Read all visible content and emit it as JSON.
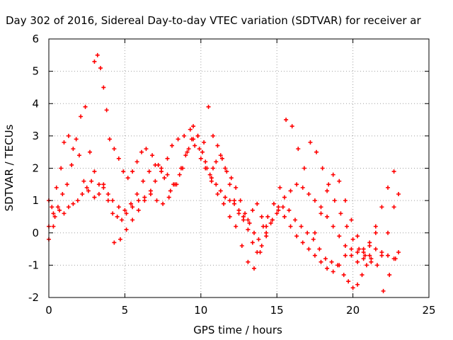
{
  "chart_data": {
    "type": "scatter",
    "title": "Day 302 of 2016, Sidereal Day-to-day VTEC variation (SDTVAR) for receiver ar",
    "xlabel": "GPS time / hours",
    "ylabel": "SDTVAR / TECUs",
    "xlim": [
      0,
      25
    ],
    "ylim": [
      -2,
      6
    ],
    "xticks": [
      "0",
      "5",
      "10",
      "15",
      "20",
      "25"
    ],
    "yticks": [
      "-2",
      "-1",
      "0",
      "1",
      "2",
      "3",
      "4",
      "5",
      "6"
    ],
    "grid": true,
    "marker": "plus",
    "color": "#ff0000",
    "series": [
      {
        "x": [
          0.0,
          0.3,
          0.5,
          0.8,
          1.0,
          1.3,
          1.6,
          2.0,
          2.3,
          2.6,
          3.0,
          3.3,
          3.6,
          3.9,
          4.2,
          4.5,
          4.8,
          5.1,
          5.5,
          5.9,
          6.3,
          6.7,
          7.0,
          7.4,
          7.8,
          8.1,
          8.5,
          8.9,
          9.3,
          9.6,
          10.0,
          10.3,
          10.6,
          10.8,
          11.0,
          11.3,
          11.6,
          11.9,
          12.2,
          12.5,
          12.8,
          13.1,
          13.4,
          13.7,
          14.0,
          14.3,
          14.6,
          15.0,
          15.4,
          15.8,
          16.2,
          16.6,
          17.0,
          17.4,
          17.8,
          18.2,
          18.6,
          19.0,
          19.4,
          19.7,
          20.0,
          20.3,
          20.6,
          20.9,
          21.2
        ],
        "y": [
          0.2,
          0.6,
          1.4,
          2.0,
          2.8,
          3.0,
          2.6,
          2.4,
          1.6,
          1.3,
          1.1,
          1.2,
          1.5,
          1.0,
          0.6,
          0.5,
          0.4,
          0.6,
          0.8,
          1.0,
          1.1,
          1.3,
          1.6,
          1.9,
          2.3,
          2.7,
          2.9,
          3.0,
          3.2,
          2.7,
          2.3,
          2.0,
          1.8,
          2.0,
          2.2,
          2.4,
          2.0,
          1.5,
          1.0,
          0.7,
          0.5,
          0.4,
          0.7,
          0.9,
          0.5,
          0.2,
          0.3,
          0.6,
          0.8,
          0.7,
          0.4,
          0.2,
          0.0,
          -0.2,
          -0.5,
          -0.8,
          -0.9,
          -1.0,
          -1.3,
          -1.5,
          -1.7,
          -1.6,
          -1.3,
          -1.0,
          -0.8
        ]
      },
      {
        "x": [
          0.0,
          0.2,
          0.4,
          0.7,
          1.0,
          1.3,
          1.6,
          1.9,
          2.2,
          2.5,
          2.8,
          3.0,
          3.2,
          3.4,
          3.6,
          3.8,
          4.0,
          4.3,
          4.6,
          4.9,
          5.2,
          5.5,
          5.8,
          6.1,
          6.4,
          6.8,
          7.2,
          7.6,
          8.0,
          8.4,
          8.8,
          9.2,
          9.5,
          9.8,
          10.1,
          10.4,
          10.7,
          11.0,
          11.3,
          11.6,
          11.9,
          12.2,
          12.5,
          12.8,
          13.1,
          13.4,
          13.7,
          14.0,
          14.3,
          14.7,
          15.1,
          15.5,
          15.9,
          16.3,
          16.7,
          17.1,
          17.5,
          17.9,
          18.3,
          18.7,
          19.1,
          19.5,
          19.9,
          20.3,
          20.7,
          21.1,
          21.5,
          21.9,
          22.3,
          22.7
        ],
        "y": [
          1.0,
          0.8,
          0.5,
          0.7,
          0.6,
          0.8,
          0.9,
          1.0,
          1.2,
          1.4,
          1.6,
          5.3,
          5.5,
          5.1,
          4.5,
          3.8,
          2.9,
          2.6,
          2.3,
          1.9,
          1.7,
          1.9,
          2.2,
          2.5,
          2.6,
          2.4,
          2.1,
          1.7,
          1.3,
          1.5,
          2.0,
          2.6,
          3.3,
          3.0,
          2.5,
          2.0,
          1.7,
          1.5,
          1.3,
          1.1,
          1.0,
          0.9,
          0.6,
          0.4,
          0.1,
          -0.3,
          -0.6,
          -0.4,
          0.0,
          0.4,
          0.8,
          1.1,
          1.3,
          1.5,
          1.4,
          1.2,
          1.0,
          0.8,
          0.5,
          0.2,
          -0.1,
          -0.4,
          -0.7,
          -0.9,
          -0.6,
          -0.3,
          0.2,
          0.8,
          1.4,
          1.9
        ]
      },
      {
        "x": [
          0.0,
          0.3,
          0.6,
          0.9,
          1.2,
          1.5,
          1.8,
          2.1,
          2.4,
          2.7,
          3.0,
          3.3,
          3.6,
          3.9,
          4.2,
          4.6,
          5.0,
          5.4,
          5.8,
          6.2,
          6.6,
          7.0,
          7.4,
          7.8,
          8.2,
          8.6,
          9.0,
          9.4,
          9.8,
          10.2,
          10.5,
          10.8,
          11.1,
          11.4,
          11.7,
          12.0,
          12.3,
          12.6,
          12.9,
          13.2,
          13.5,
          13.8,
          14.1,
          14.4,
          14.8,
          15.2,
          15.6,
          16.0,
          16.4,
          16.8,
          17.2,
          17.6,
          18.0,
          18.4,
          18.8,
          19.2,
          19.6,
          20.0,
          20.4,
          20.8,
          21.2,
          21.6,
          22.0,
          22.4,
          22.8
        ],
        "y": [
          -0.2,
          0.2,
          0.8,
          1.2,
          1.5,
          2.1,
          2.9,
          3.6,
          3.9,
          2.5,
          1.9,
          1.5,
          1.4,
          1.2,
          1.0,
          0.8,
          0.7,
          0.9,
          1.2,
          1.6,
          1.9,
          2.1,
          2.0,
          1.8,
          1.5,
          1.8,
          2.4,
          2.9,
          3.0,
          2.8,
          3.9,
          3.0,
          2.7,
          2.3,
          1.9,
          1.7,
          1.4,
          1.0,
          0.6,
          0.3,
          0.0,
          -0.2,
          0.2,
          0.5,
          0.9,
          1.4,
          3.5,
          3.3,
          2.6,
          2.0,
          2.8,
          2.5,
          2.0,
          1.5,
          1.0,
          0.6,
          0.2,
          -0.2,
          -0.5,
          -0.7,
          -0.9,
          -1.0,
          -1.8,
          -1.3,
          -0.8
        ]
      },
      {
        "x": [
          4.3,
          4.7,
          5.1,
          5.5,
          5.9,
          6.3,
          6.7,
          7.1,
          7.5,
          7.9,
          8.3,
          8.7,
          9.1,
          9.5,
          9.9,
          10.3,
          10.7,
          11.1,
          11.5,
          11.9,
          12.3,
          12.7,
          13.1,
          13.5,
          13.9,
          14.3,
          14.7,
          15.1,
          15.5,
          15.9,
          16.3,
          16.7,
          17.1,
          17.5,
          17.9,
          18.3,
          18.7,
          19.1,
          19.5,
          19.9,
          20.3,
          20.7,
          21.1,
          21.5,
          21.9,
          22.3,
          22.7,
          23.0
        ],
        "y": [
          -0.3,
          -0.2,
          0.1,
          0.4,
          0.7,
          1.0,
          1.2,
          1.0,
          0.9,
          1.1,
          1.5,
          2.0,
          2.5,
          2.9,
          2.6,
          2.2,
          1.6,
          1.2,
          0.9,
          0.5,
          0.2,
          -0.4,
          -0.9,
          -1.1,
          -0.6,
          -0.1,
          0.4,
          0.7,
          0.5,
          0.2,
          -0.1,
          -0.3,
          -0.5,
          -0.7,
          -0.9,
          -1.1,
          -1.2,
          -1.0,
          -0.7,
          -0.5,
          -0.6,
          -0.8,
          -0.7,
          -0.5,
          -0.6,
          -0.7,
          -0.8,
          -0.6
        ]
      },
      {
        "x": [
          17.5,
          17.9,
          18.3,
          18.7,
          19.1,
          19.5,
          19.9,
          20.3,
          20.7,
          21.1,
          21.5,
          21.9,
          22.3,
          22.7,
          23.0
        ],
        "y": [
          0.0,
          0.6,
          1.3,
          1.8,
          1.6,
          1.0,
          0.4,
          -0.1,
          -0.5,
          -0.4,
          0.0,
          -0.7,
          0.0,
          0.8,
          1.2
        ]
      }
    ]
  }
}
